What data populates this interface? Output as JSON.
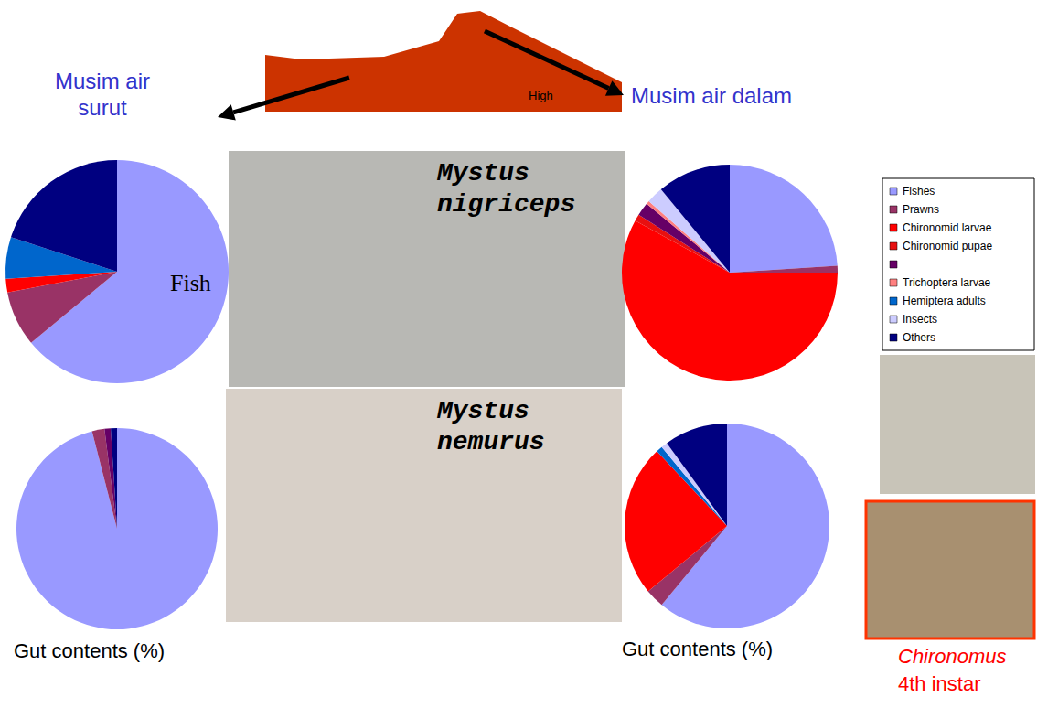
{
  "figure": {
    "seasons": [
      "Musim air surut",
      "Musim air dalam"
    ],
    "high_label": "High",
    "species": [
      "Mystus nigriceps",
      "Mystus nemurus"
    ],
    "axis_caption": "Gut contents (%)",
    "photo_caption": [
      "Chironomus",
      "4th instar"
    ]
  },
  "chart_data": [
    {
      "type": "pie",
      "annotation": "Fish",
      "categories": [
        "Fishes",
        "Prawns",
        "Chironomid larvae",
        "Chironomid pupae",
        null,
        "Trichoptera larvae",
        "Hemiptera adults",
        "Insects",
        "Others"
      ],
      "values": [
        64,
        8,
        2,
        0,
        0,
        0,
        6,
        0,
        20
      ],
      "colors": [
        "#9999ff",
        "#993366",
        "#ff0000",
        "#e81010",
        "#660066",
        "#ff8080",
        "#0066cc",
        "#ccccff",
        "#000080"
      ]
    },
    {
      "type": "pie",
      "categories": [
        "Fishes",
        "Prawns",
        "Chironomid larvae",
        "Chironomid pupae",
        null,
        "Trichoptera larvae",
        "Hemiptera adults",
        "Insects",
        "Others"
      ],
      "values": [
        24,
        1,
        58,
        1,
        2,
        0.5,
        0,
        2.5,
        11
      ],
      "colors": [
        "#9999ff",
        "#993366",
        "#ff0000",
        "#e81010",
        "#660066",
        "#ff8080",
        "#0066cc",
        "#ccccff",
        "#000080"
      ]
    },
    {
      "type": "pie",
      "categories": [
        "Fishes",
        "Prawns",
        "Chironomid larvae",
        "Chironomid pupae",
        null,
        "Trichoptera larvae",
        "Hemiptera adults",
        "Insects",
        "Others"
      ],
      "values": [
        96,
        2,
        0,
        0,
        1,
        0,
        0,
        0,
        1
      ],
      "colors": [
        "#9999ff",
        "#993366",
        "#ff0000",
        "#e81010",
        "#660066",
        "#ff8080",
        "#0066cc",
        "#ccccff",
        "#000080"
      ]
    },
    {
      "type": "pie",
      "categories": [
        "Fishes",
        "Prawns",
        "Chironomid larvae",
        "Chironomid pupae",
        null,
        "Trichoptera larvae",
        "Hemiptera adults",
        "Insects",
        "Others"
      ],
      "values": [
        61,
        3,
        24,
        0,
        0,
        0,
        1,
        1,
        10
      ],
      "colors": [
        "#9999ff",
        "#993366",
        "#ff0000",
        "#e81010",
        "#660066",
        "#ff8080",
        "#0066cc",
        "#ccccff",
        "#000080"
      ]
    }
  ]
}
